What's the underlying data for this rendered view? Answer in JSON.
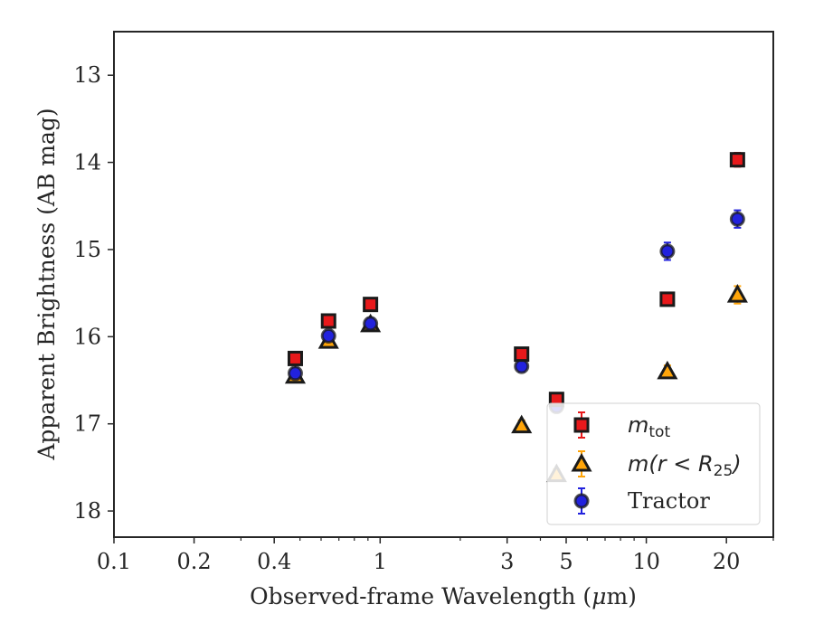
{
  "chart_data": {
    "type": "scatter",
    "xscale": "log",
    "yaxis_inverted": true,
    "xlim": [
      0.1,
      30
    ],
    "ylim": [
      18.3,
      12.5
    ],
    "xlabel_pre": "Observed-frame Wavelength (",
    "xlabel_mu": "μ",
    "xlabel_post": "m)",
    "ylabel": "Apparent Brightness (AB mag)",
    "x_ticks": [
      {
        "v": 0.1,
        "label": "0.1"
      },
      {
        "v": 0.2,
        "label": "0.2"
      },
      {
        "v": 0.4,
        "label": "0.4"
      },
      {
        "v": 1,
        "label": "1"
      },
      {
        "v": 3,
        "label": "3"
      },
      {
        "v": 5,
        "label": "5"
      },
      {
        "v": 10,
        "label": "10"
      },
      {
        "v": 20,
        "label": "20"
      }
    ],
    "x_minor_ticks": [
      0.3,
      0.5,
      0.6,
      0.7,
      0.8,
      0.9,
      2,
      4,
      6,
      7,
      8,
      9,
      30
    ],
    "y_ticks": [
      {
        "v": 13,
        "label": "13"
      },
      {
        "v": 14,
        "label": "14"
      },
      {
        "v": 15,
        "label": "15"
      },
      {
        "v": 16,
        "label": "16"
      },
      {
        "v": 17,
        "label": "17"
      },
      {
        "v": 18,
        "label": "18"
      }
    ],
    "legend_position": "lower right",
    "series": [
      {
        "name_main": "m",
        "name_sub": "tot",
        "marker": "square",
        "color": "#e8191b",
        "ecolor": "#e8191b",
        "points": [
          {
            "x": 0.48,
            "y": 16.25,
            "err": 0.06
          },
          {
            "x": 0.64,
            "y": 15.82,
            "err": 0.06
          },
          {
            "x": 0.92,
            "y": 15.63,
            "err": 0.06
          },
          {
            "x": 3.4,
            "y": 16.2,
            "err": 0.06
          },
          {
            "x": 4.6,
            "y": 16.72,
            "err": 0.06
          },
          {
            "x": 12,
            "y": 15.57,
            "err": 0.07
          },
          {
            "x": 22,
            "y": 13.97,
            "err": 0.08
          }
        ]
      },
      {
        "name_pre": "m(r < R",
        "name_sub": "25",
        "name_post": ")",
        "marker": "triangle",
        "color": "#ffa50a",
        "ecolor": "#ffa50a",
        "points": [
          {
            "x": 0.48,
            "y": 16.45,
            "err": 0.06
          },
          {
            "x": 0.64,
            "y": 16.05,
            "err": 0.06
          },
          {
            "x": 0.92,
            "y": 15.86,
            "err": 0.06
          },
          {
            "x": 3.4,
            "y": 17.02,
            "err": 0.06
          },
          {
            "x": 4.6,
            "y": 17.58,
            "err": 0.06
          },
          {
            "x": 12,
            "y": 16.4,
            "err": 0.07
          },
          {
            "x": 22,
            "y": 15.52,
            "err": 0.1
          }
        ]
      },
      {
        "name": "Tractor",
        "marker": "circle",
        "color": "#2222dd",
        "ecolor": "#2222dd",
        "points": [
          {
            "x": 0.48,
            "y": 16.42,
            "err": 0.06
          },
          {
            "x": 0.64,
            "y": 15.99,
            "err": 0.06
          },
          {
            "x": 0.92,
            "y": 15.85,
            "err": 0.06
          },
          {
            "x": 3.4,
            "y": 16.34,
            "err": 0.06
          },
          {
            "x": 4.6,
            "y": 16.8,
            "err": 0.06
          },
          {
            "x": 12,
            "y": 15.02,
            "err": 0.1
          },
          {
            "x": 22,
            "y": 14.65,
            "err": 0.1
          }
        ]
      }
    ]
  }
}
